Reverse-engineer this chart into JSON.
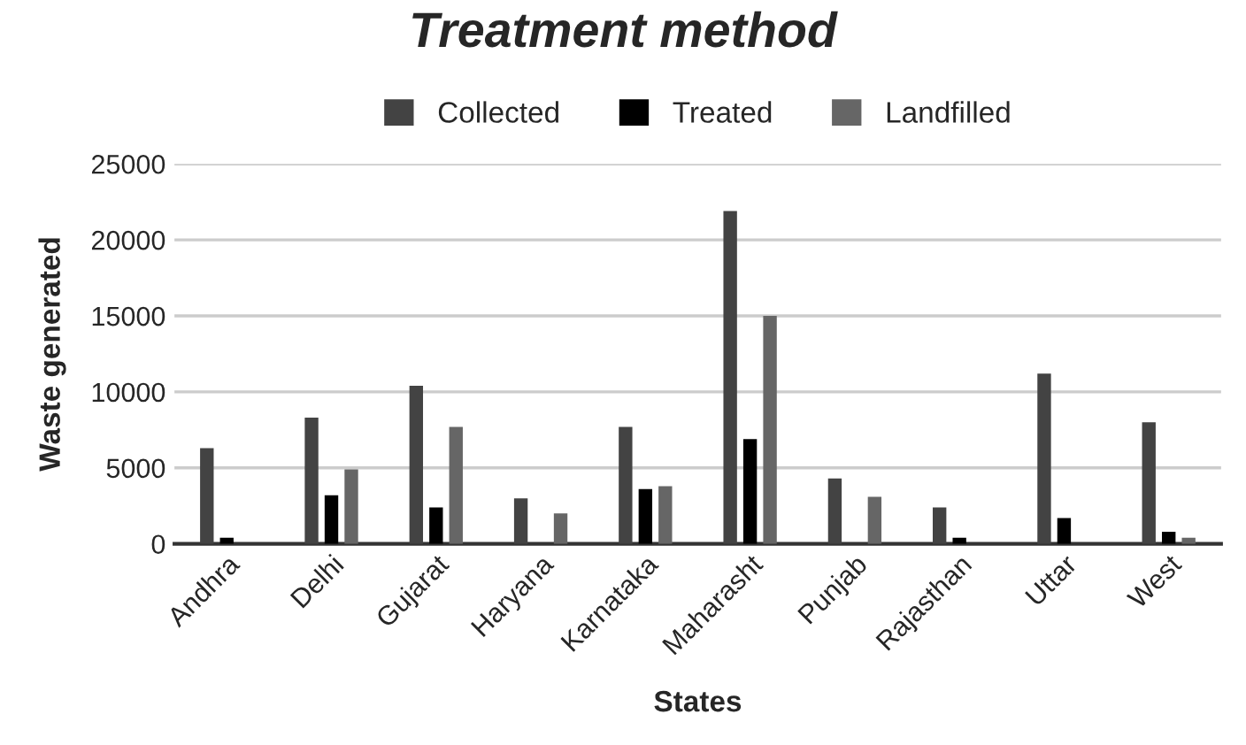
{
  "chart_data": {
    "type": "bar",
    "title": "Treatment method",
    "xlabel": "States",
    "ylabel": "Waste generated",
    "categories": [
      "Andhra",
      "Delhi",
      "Gujarat",
      "Haryana",
      "Karnataka",
      "Maharasht",
      "Punjab",
      "Rajasthan",
      "Uttar",
      "West"
    ],
    "series": [
      {
        "name": "Collected",
        "color": "#434343",
        "values": [
          6300,
          8300,
          10400,
          3000,
          7700,
          21900,
          4300,
          2400,
          11200,
          8000
        ]
      },
      {
        "name": "Treated",
        "color": "#000000",
        "values": [
          400,
          3200,
          2400,
          null,
          3600,
          6900,
          null,
          400,
          1700,
          800
        ]
      },
      {
        "name": "Landfilled",
        "color": "#666666",
        "values": [
          null,
          4900,
          7700,
          2000,
          3800,
          15000,
          3100,
          null,
          null,
          400
        ]
      }
    ],
    "ylim": [
      0,
      25000
    ],
    "yticks": [
      0,
      5000,
      10000,
      15000,
      20000,
      25000
    ],
    "grid": "y",
    "legend": "top"
  }
}
